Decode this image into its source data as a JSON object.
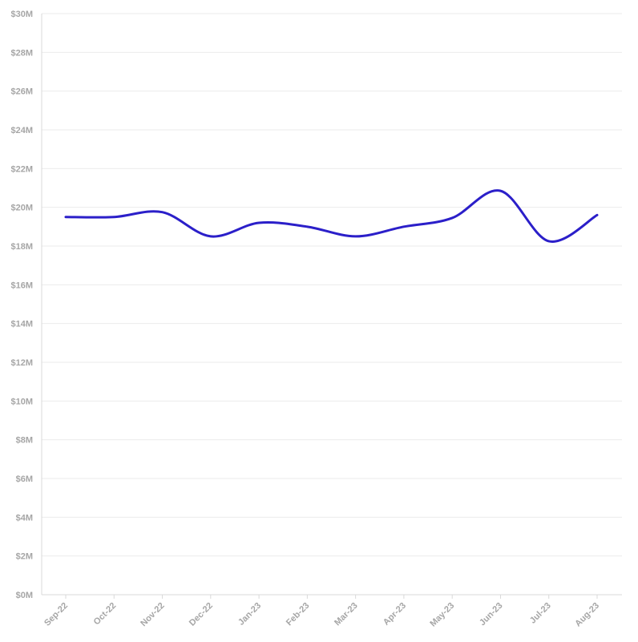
{
  "chart_data": {
    "type": "line",
    "categories": [
      "Sep-22",
      "Oct-22",
      "Nov-22",
      "Dec-22",
      "Jan-23",
      "Feb-23",
      "Mar-23",
      "Apr-23",
      "May-23",
      "Jun-23",
      "Jul-23",
      "Aug-23"
    ],
    "series": [
      {
        "values": [
          19.5,
          19.5,
          19.75,
          18.5,
          19.2,
          19.0,
          18.5,
          19.0,
          19.45,
          20.85,
          18.25,
          19.6
        ]
      }
    ],
    "y_tick_labels": [
      "$0M",
      "$2M",
      "$4M",
      "$6M",
      "$8M",
      "$10M",
      "$12M",
      "$14M",
      "$16M",
      "$18M",
      "$20M",
      "$22M",
      "$24M",
      "$26M",
      "$28M",
      "$30M"
    ],
    "ylim": [
      0,
      30
    ],
    "y_unit": "millions USD",
    "grid": true,
    "line_color": "#2b1fc9",
    "title": "",
    "xlabel": "",
    "ylabel": ""
  }
}
